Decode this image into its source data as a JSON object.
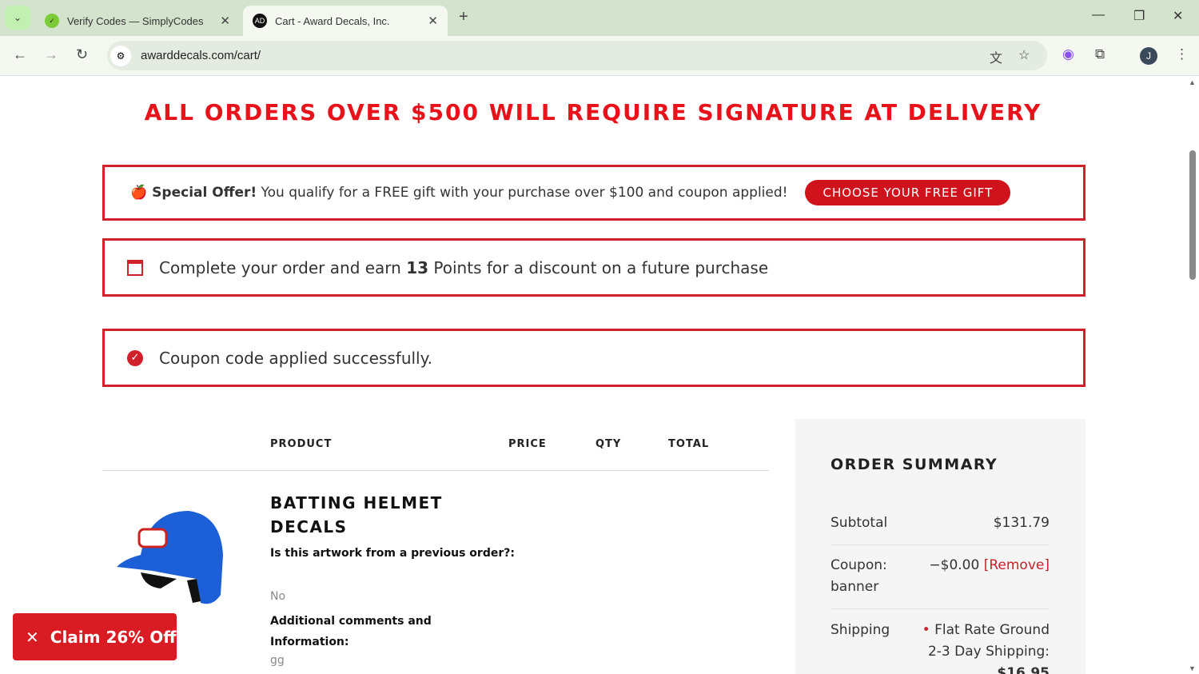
{
  "browser": {
    "tabs": [
      {
        "title": "Verify Codes — SimplyCodes",
        "active": false
      },
      {
        "title": "Cart - Award Decals, Inc.",
        "active": true
      }
    ],
    "url": "awarddecals.com/cart/",
    "profile_initial": "J"
  },
  "page": {
    "banner": "ALL ORDERS OVER $500 WILL REQUIRE SIGNATURE AT DELIVERY",
    "offer": {
      "bold": "Special Offer!",
      "text": " You qualify for a FREE gift with your purchase over $100 and coupon applied!",
      "button": "CHOOSE YOUR FREE GIFT"
    },
    "points": {
      "pre": "Complete your order and earn ",
      "points": "13",
      "post": " Points for a discount on a future purchase"
    },
    "coupon_msg": "Coupon code applied successfully.",
    "table_headers": {
      "product": "PRODUCT",
      "price": "PRICE",
      "qty": "QTY",
      "total": "TOTAL"
    },
    "item": {
      "name": "BATTING HELMET DECALS",
      "fields": [
        {
          "q": "Is this artwork from a previous order?:",
          "a": "No"
        },
        {
          "q": "Additional comments and Information:",
          "a": "gg"
        }
      ]
    },
    "summary": {
      "title": "ORDER SUMMARY",
      "subtotal_label": "Subtotal",
      "subtotal": "$131.79",
      "coupon_label": "Coupon: banner",
      "coupon_value": "−$0.00",
      "remove": "[Remove]",
      "shipping_label": "Shipping",
      "shipping_method": "Flat Rate Ground 2-3 Day Shipping:",
      "shipping_price": "$16.95"
    },
    "claim": "Claim 26% Off"
  },
  "colors": {
    "accent": "#d0202a"
  }
}
